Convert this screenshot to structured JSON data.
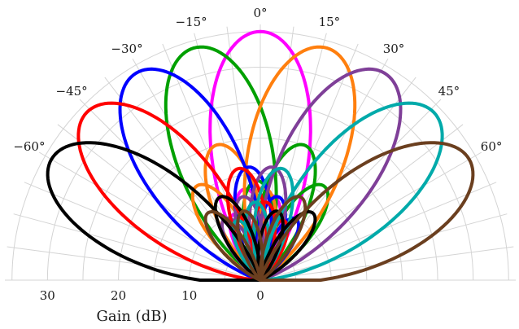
{
  "chart_data": {
    "type": "polar",
    "title": "",
    "radial_axis_label": "Gain (dB)",
    "radial_ticks": [
      "0",
      "10",
      "20",
      "30"
    ],
    "radial_range": [
      0,
      36
    ],
    "angle_ticks": [
      "−60°",
      "−45°",
      "−30°",
      "−15°",
      "0°",
      "15°",
      "30°",
      "45°",
      "60°"
    ],
    "angle_tick_values": [
      -60,
      -45,
      -30,
      -15,
      0,
      15,
      30,
      45,
      60
    ],
    "angle_range": [
      -90,
      90
    ],
    "grid": true,
    "series": [
      {
        "color": "#ff00ff",
        "beams": [
          {
            "steer": 0,
            "peak": 35
          },
          {
            "steer": -10,
            "peak": 13
          },
          {
            "steer": 8,
            "peak": 12
          },
          {
            "steer": -22,
            "peak": 10
          }
        ]
      },
      {
        "color": "#00a000",
        "beams": [
          {
            "steer": -16,
            "peak": 34
          },
          {
            "steer": 18,
            "peak": 20
          },
          {
            "steer": -2,
            "peak": 14
          },
          {
            "steer": 34,
            "peak": 16
          }
        ]
      },
      {
        "color": "#ff7f0e",
        "beams": [
          {
            "steer": 16,
            "peak": 34
          },
          {
            "steer": -18,
            "peak": 20
          },
          {
            "steer": 2,
            "peak": 13
          },
          {
            "steer": -34,
            "peak": 16
          }
        ]
      },
      {
        "color": "#0000ff",
        "beams": [
          {
            "steer": -31,
            "peak": 34
          },
          {
            "steer": -6,
            "peak": 16
          },
          {
            "steer": 12,
            "peak": 12
          },
          {
            "steer": 30,
            "peak": 10
          }
        ]
      },
      {
        "color": "#7f3f98",
        "beams": [
          {
            "steer": 31,
            "peak": 34
          },
          {
            "steer": 6,
            "peak": 16
          },
          {
            "steer": -12,
            "peak": 12
          },
          {
            "steer": -30,
            "peak": 10
          }
        ]
      },
      {
        "color": "#ff0000",
        "beams": [
          {
            "steer": -46,
            "peak": 34
          },
          {
            "steer": -11,
            "peak": 16
          },
          {
            "steer": 4,
            "peak": 11
          },
          {
            "steer": 22,
            "peak": 9
          }
        ]
      },
      {
        "color": "#00aaaa",
        "beams": [
          {
            "steer": 46,
            "peak": 34
          },
          {
            "steer": 11,
            "peak": 16
          },
          {
            "steer": -4,
            "peak": 11
          },
          {
            "steer": -22,
            "peak": 9
          }
        ]
      },
      {
        "color": "#000000",
        "beams": [
          {
            "steer": -60,
            "peak": 34
          },
          {
            "steer": -26,
            "peak": 13
          },
          {
            "steer": 38,
            "peak": 12
          },
          {
            "steer": 14,
            "peak": 10
          }
        ]
      },
      {
        "color": "#6b3f1f",
        "beams": [
          {
            "steer": 60,
            "peak": 34
          },
          {
            "steer": 26,
            "peak": 13
          },
          {
            "steer": -38,
            "peak": 12
          },
          {
            "steer": -14,
            "peak": 10
          }
        ]
      }
    ]
  }
}
